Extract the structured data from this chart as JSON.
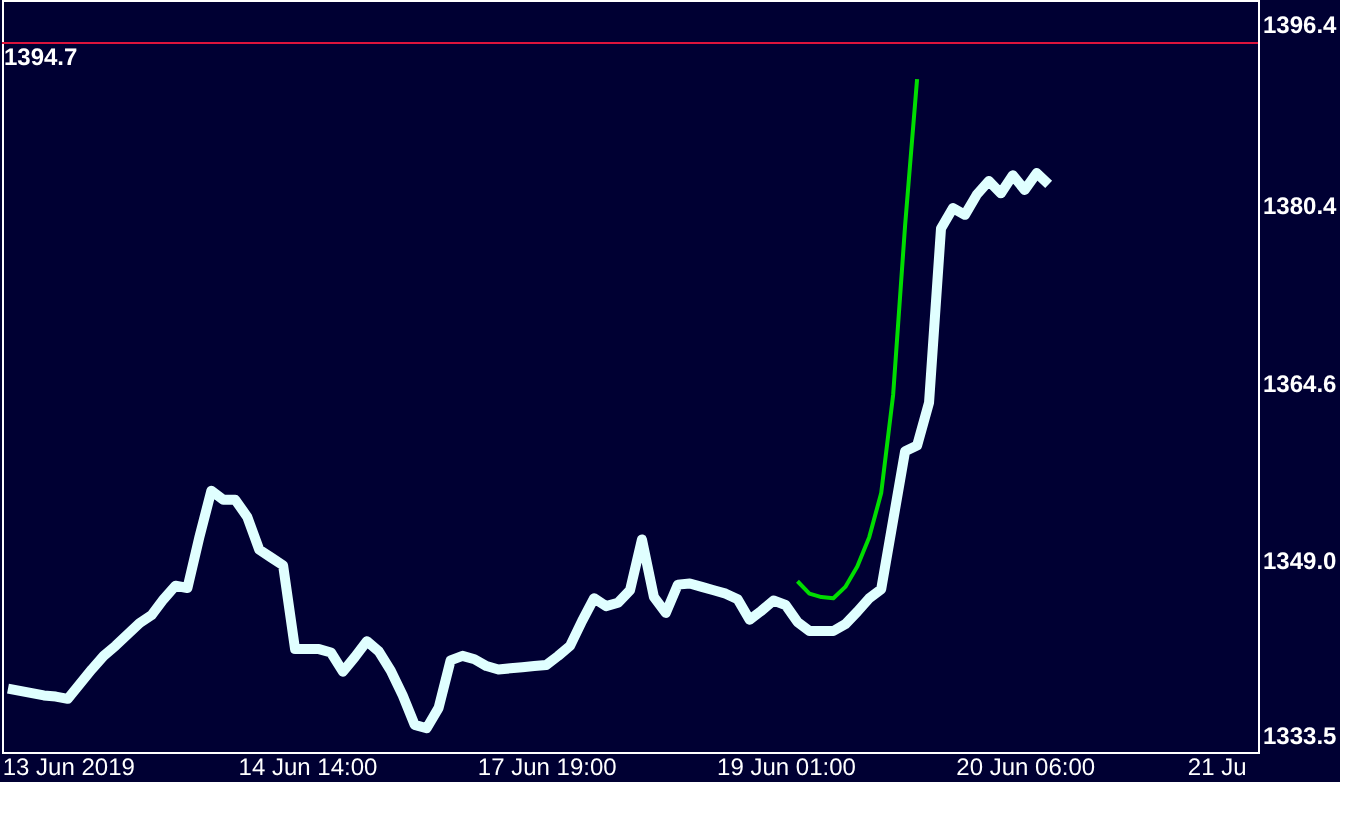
{
  "chart_data": {
    "type": "line",
    "ylim": [
      1332.0,
      1398.5
    ],
    "categories": [
      null,
      null,
      null,
      null,
      null,
      "13 Jun 2019",
      null,
      null,
      null,
      null,
      null,
      null,
      null,
      null,
      null,
      null,
      null,
      null,
      null,
      null,
      null,
      null,
      null,
      null,
      null,
      "14 Jun 14:00",
      null,
      null,
      null,
      null,
      null,
      null,
      null,
      null,
      null,
      null,
      null,
      null,
      null,
      null,
      null,
      null,
      null,
      null,
      null,
      "17 Jun 19:00",
      null,
      null,
      null,
      null,
      null,
      null,
      null,
      null,
      null,
      null,
      null,
      null,
      null,
      null,
      null,
      null,
      null,
      null,
      null,
      "19 Jun 01:00",
      null,
      null,
      null,
      null,
      null,
      null,
      null,
      null,
      null,
      null,
      null,
      null,
      null,
      null,
      null,
      null,
      null,
      null,
      null,
      "20 Jun 06:00",
      null,
      null,
      null,
      null,
      null,
      null,
      null,
      null,
      null,
      null,
      null,
      null,
      null,
      null,
      null,
      "21 Ju",
      null,
      null,
      null
    ],
    "yticks": [
      1333.5,
      {
        "value": 1349.0,
        "label": "1349.0"
      },
      1364.6,
      1380.4,
      1396.4
    ],
    "grid": false,
    "marker": "none",
    "line_style": "solid",
    "series": [
      {
        "color": "#e0ffff",
        "values": [
          1337.6,
          1337.4,
          1337.2,
          1337.0,
          1336.9,
          1336.7,
          1338.0,
          1339.3,
          1340.5,
          1341.4,
          1342.4,
          1343.4,
          1344.1,
          1345.5,
          1346.7,
          1346.5,
          1351.0,
          1355.1,
          1354.3,
          1354.3,
          1352.8,
          1349.9,
          1349.2,
          1348.5,
          1341.1,
          1341.1,
          1341.1,
          1340.8,
          1339.1,
          1340.4,
          1341.8,
          1340.9,
          1339.2,
          1337.0,
          1334.4,
          1334.1,
          1335.9,
          1340.1,
          1340.5,
          1340.2,
          1339.6,
          1339.3,
          1339.4,
          1339.5,
          1339.6,
          1339.7,
          1340.5,
          1341.4,
          1343.6,
          1345.6,
          1344.9,
          1345.2,
          1346.3,
          1350.8,
          1345.7,
          1344.3,
          1346.8,
          1346.9,
          1346.6,
          1346.3,
          1346.0,
          1345.5,
          1343.7,
          1344.5,
          1345.4,
          1345.0,
          1343.5,
          1342.7,
          1342.7,
          1342.7,
          1343.3,
          1344.4,
          1345.6,
          1346.4,
          1352.5,
          1358.6,
          1359.1,
          1362.9,
          1378.3,
          1380.1,
          1379.5,
          1381.3,
          1382.5,
          1381.4,
          1383.0,
          1381.7,
          1383.2,
          1382.2,
          null,
          null,
          null,
          null,
          null,
          null,
          null,
          null,
          null,
          null,
          null,
          null,
          null,
          null,
          null,
          null,
          null
        ]
      },
      {
        "color": "#00dd00",
        "values": [
          null,
          null,
          null,
          null,
          null,
          null,
          null,
          null,
          null,
          null,
          null,
          null,
          null,
          null,
          null,
          null,
          null,
          null,
          null,
          null,
          null,
          null,
          null,
          null,
          null,
          null,
          null,
          null,
          null,
          null,
          null,
          null,
          null,
          null,
          null,
          null,
          null,
          null,
          null,
          null,
          null,
          null,
          null,
          null,
          null,
          null,
          null,
          null,
          null,
          null,
          null,
          null,
          null,
          null,
          null,
          null,
          null,
          null,
          null,
          null,
          null,
          null,
          null,
          null,
          null,
          null,
          1347.1,
          1346.0,
          1345.7,
          1345.6,
          1346.6,
          1348.4,
          1351.0,
          1354.9,
          1363.6,
          1378.6,
          1391.5,
          null,
          null,
          null,
          null,
          null,
          null,
          null,
          null,
          null,
          null,
          null,
          null,
          null,
          null,
          null,
          null,
          null,
          null,
          null,
          null,
          null,
          null,
          null,
          null,
          null,
          null,
          null,
          null
        ]
      }
    ],
    "ref_lines": [
      {
        "axis": "y",
        "value": 1394.7,
        "label": "1394.7",
        "color": "#dc143c"
      }
    ]
  }
}
